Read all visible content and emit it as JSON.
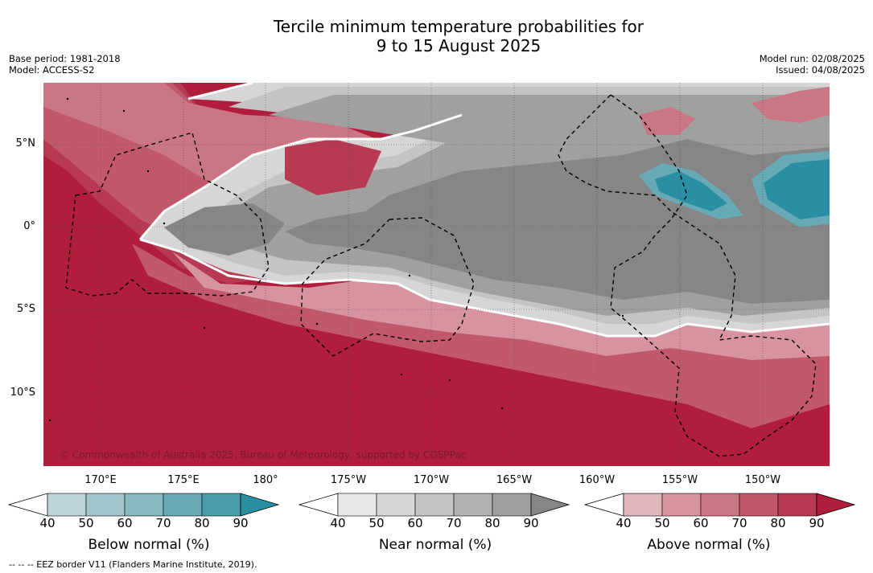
{
  "title_line1": "Tercile minimum temperature probabilities for",
  "title_line2": "9 to 15 August 2025",
  "base_period": "Base period: 1981-2018",
  "model": "Model: ACCESS-S2",
  "model_run": "Model run: 02/08/2025",
  "issued": "Issued: 04/08/2025",
  "copyright": "© Commonwealth of Australia 2025, Bureau of Meteorology, supported by COSPPac",
  "lat_labels": [
    "5°N",
    "0°",
    "5°S",
    "10°S"
  ],
  "lon_labels": [
    "170°E",
    "175°E",
    "180°",
    "175°W",
    "170°W",
    "165°W",
    "160°W",
    "155°W",
    "150°W"
  ],
  "colorbars": [
    {
      "title": "Below normal (%)",
      "ticks": [
        "40",
        "50",
        "60",
        "70",
        "80",
        "90"
      ],
      "colors": [
        "#ffffff",
        "#bcd3da",
        "#a2c5cc",
        "#88b8c2",
        "#68a9b6",
        "#4a9bab",
        "#2a8fa3"
      ]
    },
    {
      "title": "Near normal (%)",
      "ticks": [
        "40",
        "50",
        "60",
        "70",
        "80",
        "90"
      ],
      "colors": [
        "#ffffff",
        "#e8e8e8",
        "#d6d6d6",
        "#c4c4c4",
        "#b2b2b2",
        "#a0a0a0",
        "#868686"
      ]
    },
    {
      "title": "Above normal (%)",
      "ticks": [
        "40",
        "50",
        "60",
        "70",
        "80",
        "90"
      ],
      "colors": [
        "#ffffff",
        "#e1b7bd",
        "#d7949e",
        "#cb7783",
        "#c1596a",
        "#b83952",
        "#b01e3c"
      ]
    }
  ],
  "footnote": "-- -- -- EEZ border V11 (Flanders Marine Institute, 2019).",
  "map_colors": {
    "above_90": "#b01e3c",
    "above_80": "#b83952",
    "above_70": "#c1596a",
    "above_60": "#cb7783",
    "above_50": "#d7949e",
    "near_40": "#d6d6d6",
    "near_50": "#c4c4c4",
    "near_60": "#a0a0a0",
    "near_70": "#868686",
    "below_70": "#68a9b6",
    "below_90": "#2a8fa3"
  }
}
